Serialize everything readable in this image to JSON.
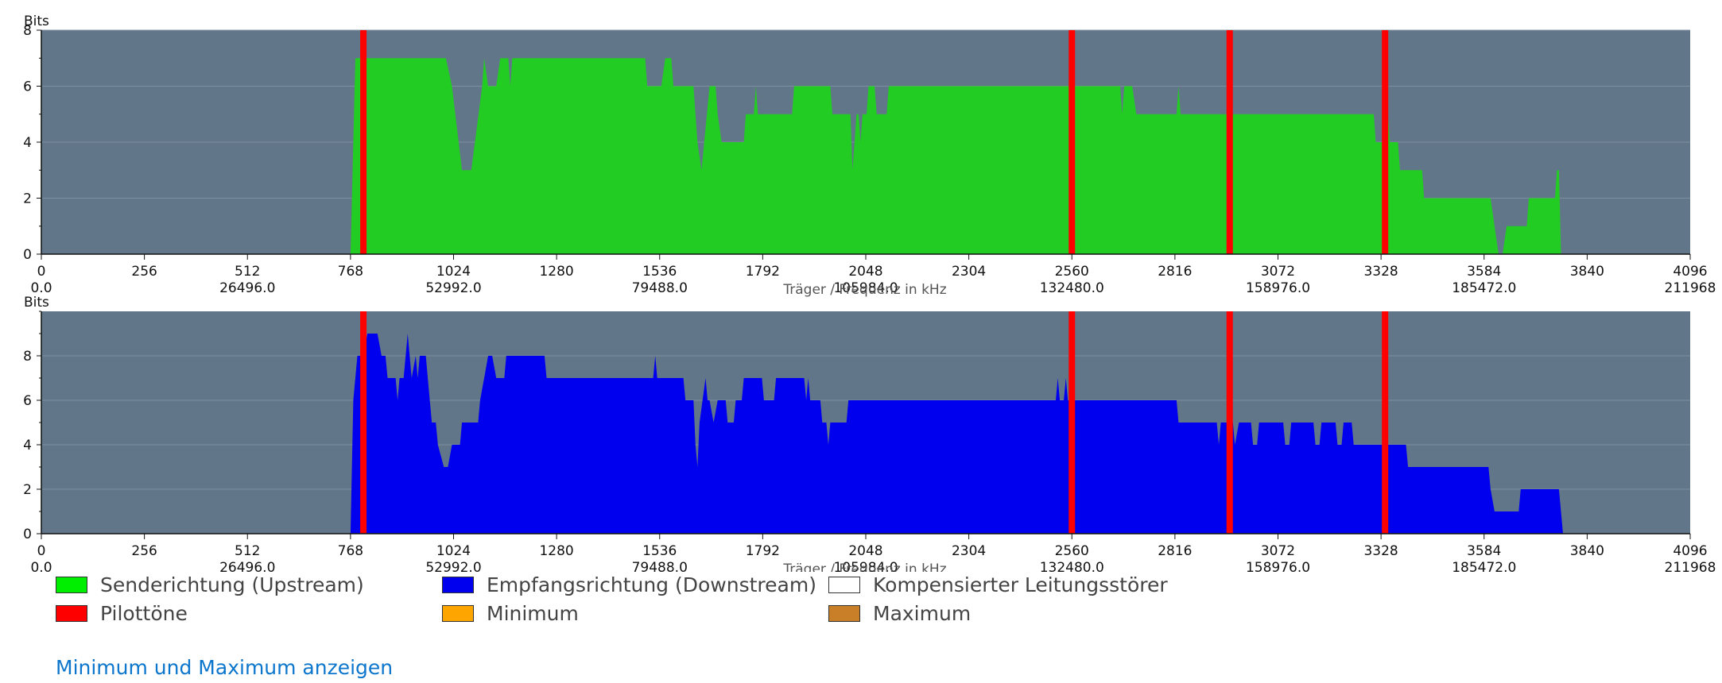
{
  "chart_data": [
    {
      "type": "area",
      "ylabel": "Bits",
      "xlabel": "Träger / Frequenz in kHz",
      "ylim": [
        0,
        8
      ],
      "xlim": [
        0,
        4096
      ],
      "y_ticks": [
        "0",
        "2",
        "4",
        "6",
        "8"
      ],
      "x_ticks_carrier": [
        "0",
        "256",
        "512",
        "768",
        "1024",
        "1280",
        "1536",
        "1792",
        "2048",
        "2304",
        "2560",
        "2816",
        "3072",
        "3328",
        "3584",
        "3840",
        "4096"
      ],
      "x_ticks_frequency": [
        "0.0",
        "26496.0",
        "52992.0",
        "79488.0",
        "105984.0",
        "132480.0",
        "158976.0",
        "185472.0",
        "211968"
      ],
      "grid": true,
      "pilot_tones": [
        800,
        2560,
        2952,
        3338
      ],
      "series": [
        {
          "name": "Senderichtung (Upstream)",
          "color": "#22cc22",
          "points": [
            [
              0,
              0
            ],
            [
              768,
              0
            ],
            [
              780,
              7
            ],
            [
              1005,
              7
            ],
            [
              1020,
              6
            ],
            [
              1045,
              3
            ],
            [
              1068,
              3
            ],
            [
              1095,
              6
            ],
            [
              1100,
              7
            ],
            [
              1110,
              6
            ],
            [
              1130,
              6
            ],
            [
              1140,
              7
            ],
            [
              1160,
              7
            ],
            [
              1165,
              6
            ],
            [
              1170,
              7
            ],
            [
              1500,
              7
            ],
            [
              1505,
              6
            ],
            [
              1540,
              6
            ],
            [
              1550,
              7
            ],
            [
              1565,
              7
            ],
            [
              1570,
              6
            ],
            [
              1620,
              6
            ],
            [
              1630,
              4
            ],
            [
              1640,
              3
            ],
            [
              1660,
              6
            ],
            [
              1675,
              6
            ],
            [
              1680,
              5
            ],
            [
              1690,
              4
            ],
            [
              1745,
              4
            ],
            [
              1750,
              5
            ],
            [
              1770,
              5
            ],
            [
              1775,
              6
            ],
            [
              1780,
              5
            ],
            [
              1865,
              5
            ],
            [
              1870,
              6
            ],
            [
              1960,
              6
            ],
            [
              1965,
              5
            ],
            [
              2010,
              5
            ],
            [
              2015,
              3
            ],
            [
              2025,
              5
            ],
            [
              2030,
              5
            ],
            [
              2035,
              4
            ],
            [
              2040,
              5
            ],
            [
              2050,
              5
            ],
            [
              2055,
              6
            ],
            [
              2070,
              6
            ],
            [
              2075,
              5
            ],
            [
              2100,
              5
            ],
            [
              2105,
              6
            ],
            [
              2680,
              6
            ],
            [
              2685,
              5
            ],
            [
              2690,
              6
            ],
            [
              2710,
              6
            ],
            [
              2720,
              5
            ],
            [
              2820,
              5
            ],
            [
              2825,
              6
            ],
            [
              2830,
              5
            ],
            [
              3310,
              5
            ],
            [
              3315,
              4
            ],
            [
              3340,
              4
            ],
            [
              3345,
              5
            ],
            [
              3350,
              4
            ],
            [
              3370,
              4
            ],
            [
              3375,
              3
            ],
            [
              3430,
              3
            ],
            [
              3435,
              2
            ],
            [
              3600,
              2
            ],
            [
              3610,
              1
            ],
            [
              3620,
              0
            ],
            [
              3630,
              0
            ],
            [
              3640,
              1
            ],
            [
              3690,
              1
            ],
            [
              3695,
              2
            ],
            [
              3760,
              2
            ],
            [
              3765,
              3
            ],
            [
              3770,
              3
            ],
            [
              3775,
              0
            ],
            [
              4096,
              0
            ]
          ]
        },
        {
          "name": "Empfangsrichtung (Downstream)",
          "color": "#0000ee",
          "points": [
            [
              0,
              0
            ],
            [
              768,
              0
            ],
            [
              775,
              6
            ],
            [
              785,
              8
            ],
            [
              800,
              8
            ],
            [
              810,
              9
            ],
            [
              835,
              9
            ],
            [
              845,
              8
            ],
            [
              855,
              8
            ],
            [
              860,
              7
            ],
            [
              880,
              7
            ],
            [
              885,
              6
            ],
            [
              890,
              7
            ],
            [
              900,
              7
            ],
            [
              910,
              9
            ],
            [
              915,
              8
            ],
            [
              920,
              7
            ],
            [
              930,
              8
            ],
            [
              935,
              7
            ],
            [
              940,
              8
            ],
            [
              955,
              8
            ],
            [
              960,
              7
            ],
            [
              965,
              6
            ],
            [
              970,
              5
            ],
            [
              980,
              5
            ],
            [
              985,
              4
            ],
            [
              1000,
              3
            ],
            [
              1010,
              3
            ],
            [
              1020,
              4
            ],
            [
              1040,
              4
            ],
            [
              1045,
              5
            ],
            [
              1085,
              5
            ],
            [
              1090,
              6
            ],
            [
              1100,
              7
            ],
            [
              1110,
              8
            ],
            [
              1120,
              8
            ],
            [
              1130,
              7
            ],
            [
              1150,
              7
            ],
            [
              1155,
              8
            ],
            [
              1250,
              8
            ],
            [
              1255,
              7
            ],
            [
              1520,
              7
            ],
            [
              1525,
              8
            ],
            [
              1530,
              7
            ],
            [
              1595,
              7
            ],
            [
              1600,
              6
            ],
            [
              1620,
              6
            ],
            [
              1625,
              4
            ],
            [
              1630,
              3
            ],
            [
              1635,
              5
            ],
            [
              1650,
              7
            ],
            [
              1655,
              6
            ],
            [
              1660,
              6
            ],
            [
              1670,
              5
            ],
            [
              1680,
              6
            ],
            [
              1700,
              6
            ],
            [
              1705,
              5
            ],
            [
              1720,
              5
            ],
            [
              1725,
              6
            ],
            [
              1740,
              6
            ],
            [
              1745,
              7
            ],
            [
              1790,
              7
            ],
            [
              1795,
              6
            ],
            [
              1820,
              6
            ],
            [
              1825,
              7
            ],
            [
              1895,
              7
            ],
            [
              1900,
              6
            ],
            [
              1905,
              7
            ],
            [
              1910,
              6
            ],
            [
              1935,
              6
            ],
            [
              1940,
              5
            ],
            [
              1950,
              5
            ],
            [
              1955,
              4
            ],
            [
              1960,
              5
            ],
            [
              2000,
              5
            ],
            [
              2005,
              6
            ],
            [
              2520,
              6
            ],
            [
              2525,
              7
            ],
            [
              2530,
              6
            ],
            [
              2540,
              6
            ],
            [
              2545,
              7
            ],
            [
              2550,
              6
            ],
            [
              2820,
              6
            ],
            [
              2825,
              5
            ],
            [
              2920,
              5
            ],
            [
              2925,
              4
            ],
            [
              2930,
              5
            ],
            [
              2960,
              5
            ],
            [
              2965,
              4
            ],
            [
              2975,
              5
            ],
            [
              3005,
              5
            ],
            [
              3010,
              4
            ],
            [
              3020,
              4
            ],
            [
              3025,
              5
            ],
            [
              3085,
              5
            ],
            [
              3090,
              4
            ],
            [
              3100,
              4
            ],
            [
              3105,
              5
            ],
            [
              3160,
              5
            ],
            [
              3165,
              4
            ],
            [
              3175,
              4
            ],
            [
              3180,
              5
            ],
            [
              3215,
              5
            ],
            [
              3220,
              4
            ],
            [
              3230,
              4
            ],
            [
              3235,
              5
            ],
            [
              3255,
              5
            ],
            [
              3260,
              4
            ],
            [
              3390,
              4
            ],
            [
              3395,
              3
            ],
            [
              3595,
              3
            ],
            [
              3600,
              2
            ],
            [
              3610,
              1
            ],
            [
              3670,
              1
            ],
            [
              3675,
              2
            ],
            [
              3770,
              2
            ],
            [
              3780,
              0
            ],
            [
              4096,
              0
            ]
          ]
        }
      ]
    }
  ],
  "legend": [
    {
      "label": "Senderichtung (Upstream)",
      "color": "#00ee00"
    },
    {
      "label": "Empfangsrichtung (Downstream)",
      "color": "#0000ee"
    },
    {
      "label": "Kompensierter Leitungsstörer",
      "color": "#ffffff"
    },
    {
      "label": "Pilottöne",
      "color": "#ff0000"
    },
    {
      "label": "Minimum",
      "color": "#ffa500"
    },
    {
      "label": "Maximum",
      "color": "#c87f28"
    }
  ],
  "links": {
    "toggle_minmax": "Minimum und Maximum anzeigen"
  }
}
